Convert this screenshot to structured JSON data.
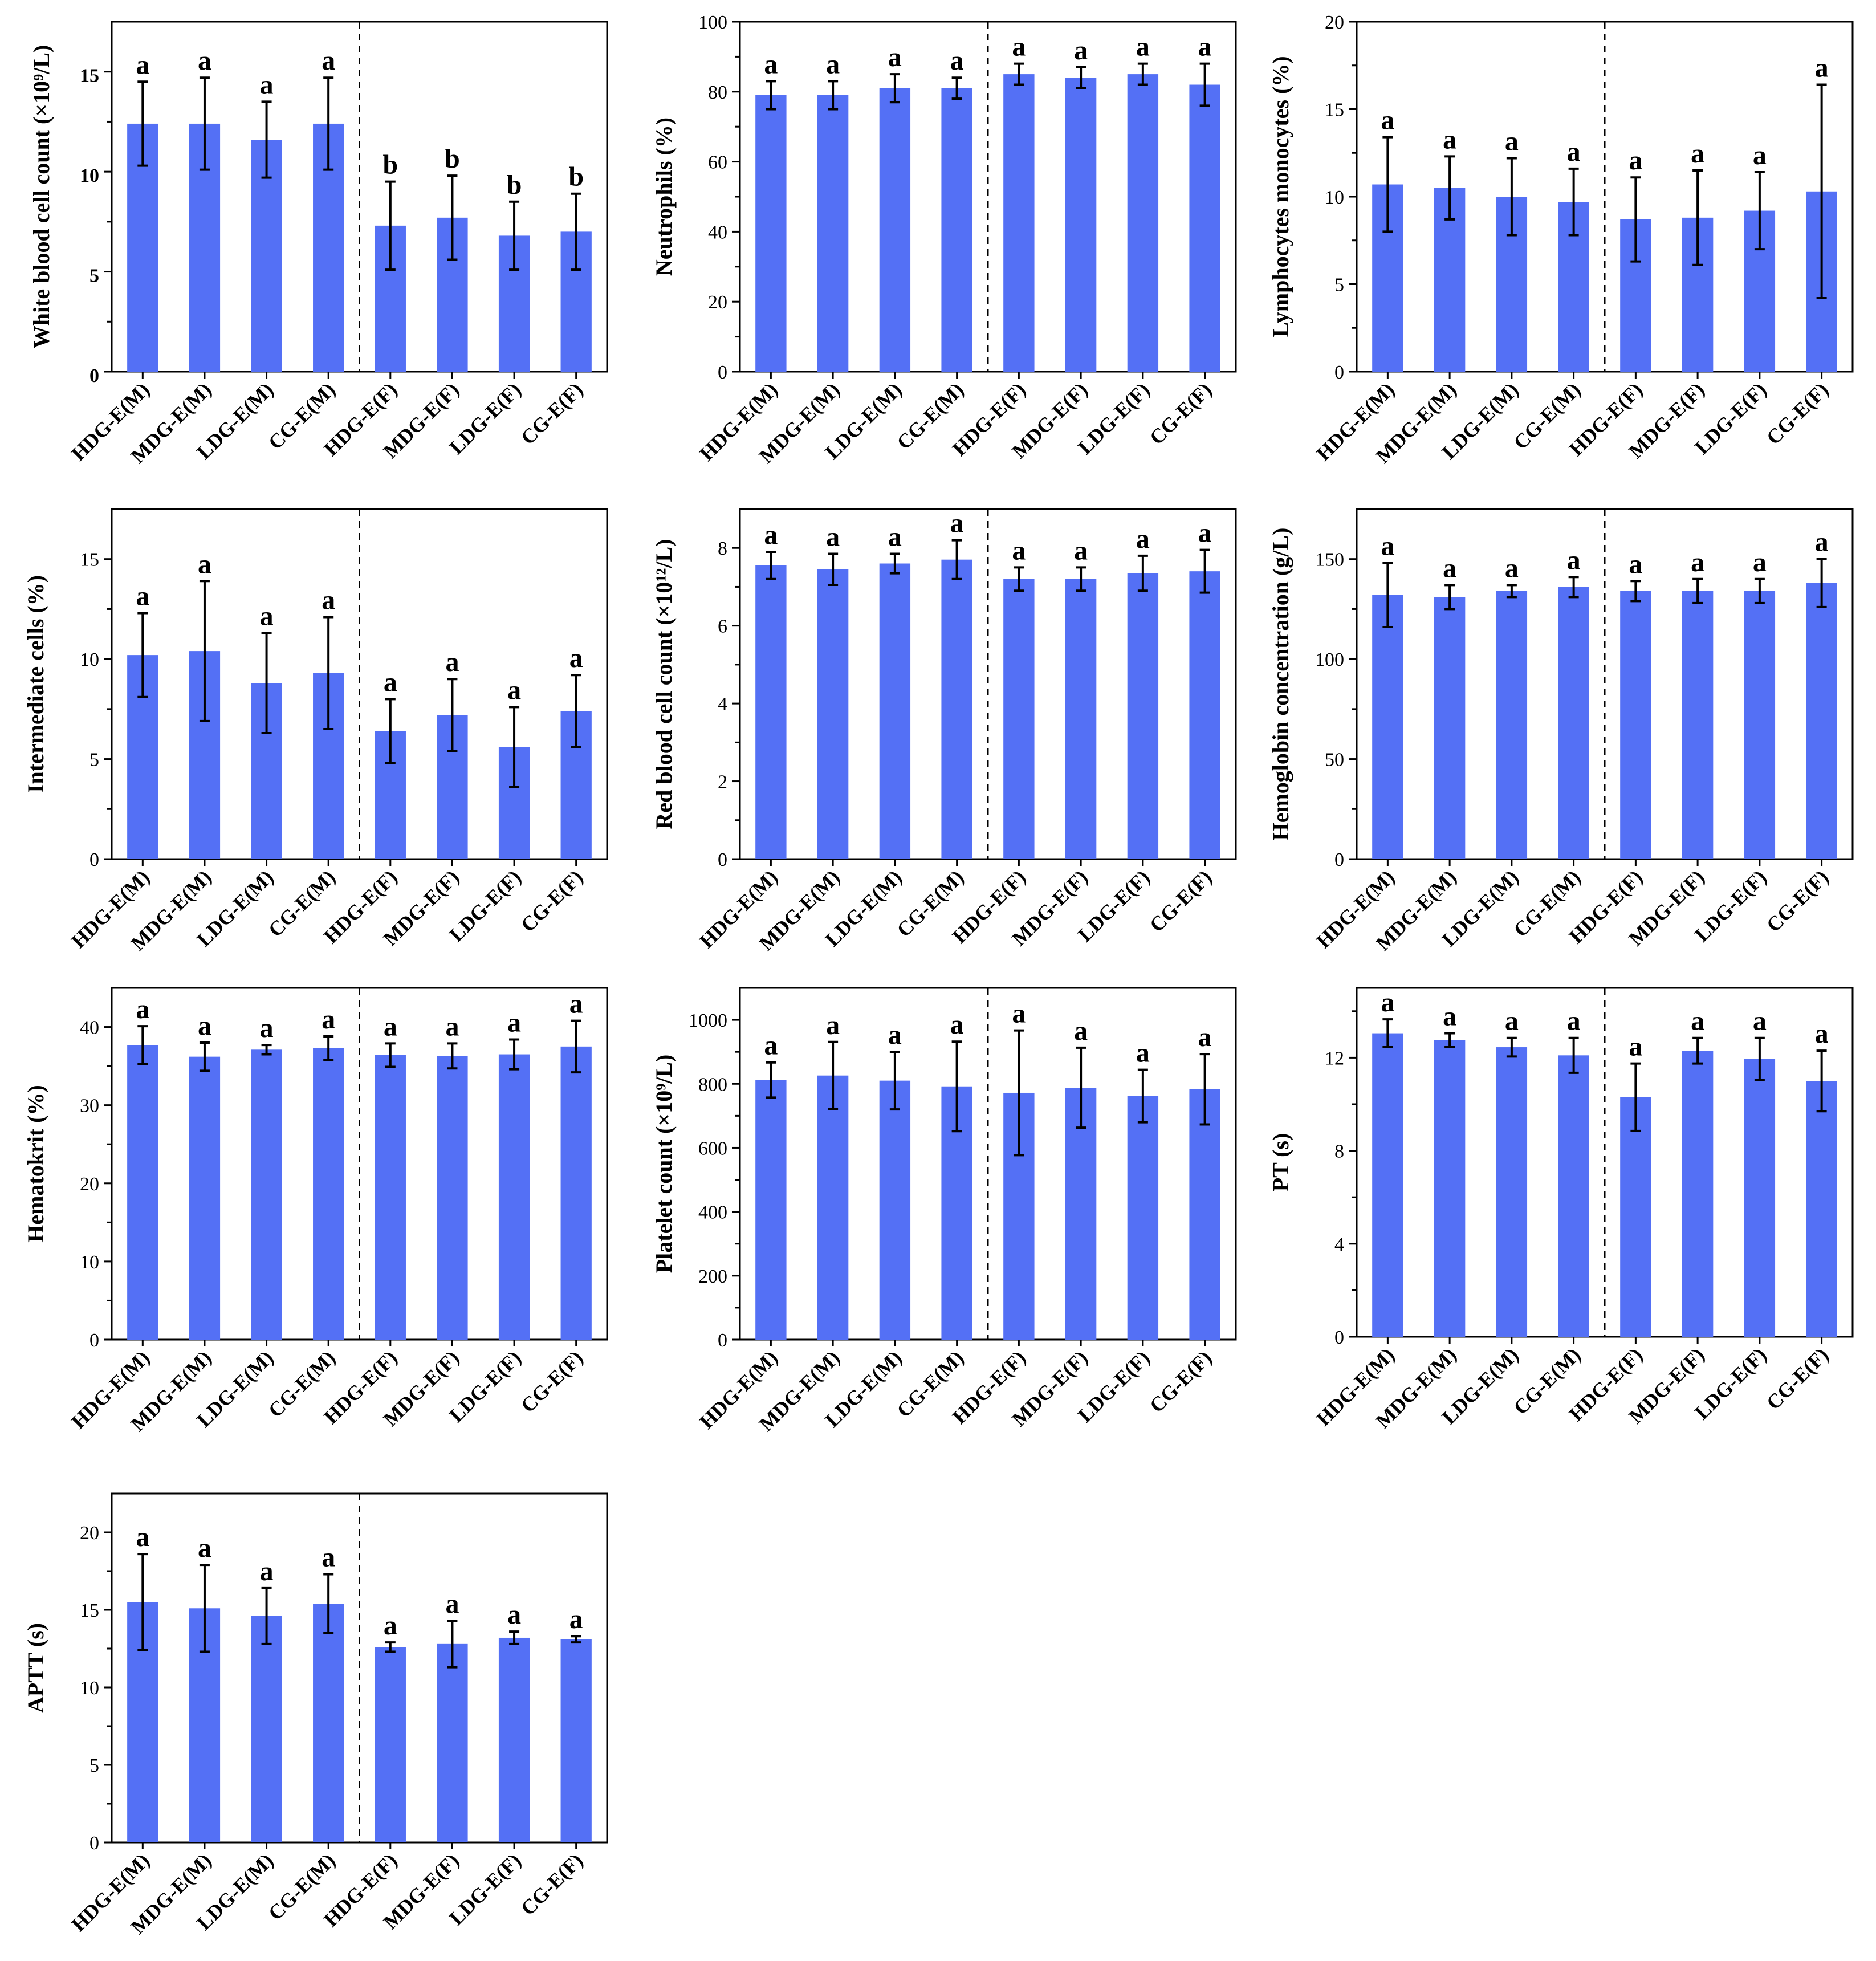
{
  "categories": [
    "HDG-E(M)",
    "MDG-E(M)",
    "LDG-E(M)",
    "CG-E(M)",
    "HDG-E(F)",
    "MDG-E(F)",
    "LDG-E(F)",
    "CG-E(F)"
  ],
  "chart_data": [
    {
      "type": "bar",
      "ylabel": "White blood cell count (×10⁹/L)",
      "ylim": [
        0,
        17.5
      ],
      "yticks": [
        0,
        5,
        10,
        15
      ],
      "font_bold_ticks": true,
      "values": [
        12.4,
        12.4,
        11.6,
        12.4,
        7.3,
        7.7,
        6.8,
        7.0
      ],
      "errors": [
        2.1,
        2.3,
        1.9,
        2.3,
        2.2,
        2.1,
        1.7,
        1.9
      ],
      "letters": [
        "a",
        "a",
        "a",
        "a",
        "b",
        "b",
        "b",
        "b"
      ]
    },
    {
      "type": "bar",
      "ylabel": "Neutrophils (%)",
      "ylim": [
        0,
        100
      ],
      "yticks": [
        0,
        20,
        40,
        60,
        80,
        100
      ],
      "values": [
        79,
        79,
        81,
        81,
        85,
        84,
        85,
        82
      ],
      "errors": [
        4,
        4,
        4,
        3,
        3,
        3,
        3,
        6
      ],
      "letters": [
        "a",
        "a",
        "a",
        "a",
        "a",
        "a",
        "a",
        "a"
      ]
    },
    {
      "type": "bar",
      "ylabel": "Lymphocytes monocytes (%)",
      "ylim": [
        0,
        20
      ],
      "yticks": [
        0,
        5,
        10,
        15,
        20
      ],
      "values": [
        10.7,
        10.5,
        10.0,
        9.7,
        8.7,
        8.8,
        9.2,
        10.3
      ],
      "errors": [
        2.7,
        1.8,
        2.2,
        1.9,
        2.4,
        2.7,
        2.2,
        6.1
      ],
      "letters": [
        "a",
        "a",
        "a",
        "a",
        "a",
        "a",
        "a",
        "a"
      ]
    },
    {
      "type": "bar",
      "ylabel": "Intermediate cells (%)",
      "ylim": [
        0,
        17.5
      ],
      "yticks": [
        0,
        5,
        10,
        15
      ],
      "values": [
        10.2,
        10.4,
        8.8,
        9.3,
        6.4,
        7.2,
        5.6,
        7.4
      ],
      "errors": [
        2.1,
        3.5,
        2.5,
        2.8,
        1.6,
        1.8,
        2.0,
        1.8
      ],
      "letters": [
        "a",
        "a",
        "a",
        "a",
        "a",
        "a",
        "a",
        "a"
      ]
    },
    {
      "type": "bar",
      "ylabel": "Red blood cell count (×10¹²/L)",
      "ylim": [
        0,
        9
      ],
      "yticks": [
        0,
        2,
        4,
        6,
        8
      ],
      "values": [
        7.55,
        7.45,
        7.6,
        7.7,
        7.2,
        7.2,
        7.35,
        7.4
      ],
      "errors": [
        0.35,
        0.4,
        0.25,
        0.5,
        0.3,
        0.3,
        0.45,
        0.55
      ],
      "letters": [
        "a",
        "a",
        "a",
        "a",
        "a",
        "a",
        "a",
        "a"
      ]
    },
    {
      "type": "bar",
      "ylabel": "Hemoglobin concentration (g/L)",
      "ylim": [
        0,
        175
      ],
      "yticks": [
        0,
        50,
        100,
        150
      ],
      "values": [
        132,
        131,
        134,
        136,
        134,
        134,
        134,
        138
      ],
      "errors": [
        16,
        6,
        3,
        5,
        5,
        6,
        6,
        12
      ],
      "letters": [
        "a",
        "a",
        "a",
        "a",
        "a",
        "a",
        "a",
        "a"
      ]
    },
    {
      "type": "bar",
      "ylabel": "Hematokrit (%)",
      "ylim": [
        0,
        45
      ],
      "yticks": [
        0,
        10,
        20,
        30,
        40
      ],
      "values": [
        37.7,
        36.2,
        37.1,
        37.3,
        36.4,
        36.3,
        36.5,
        37.5
      ],
      "errors": [
        2.4,
        1.8,
        0.6,
        1.5,
        1.5,
        1.6,
        1.9,
        3.3
      ],
      "letters": [
        "a",
        "a",
        "a",
        "a",
        "a",
        "a",
        "a",
        "a"
      ]
    },
    {
      "type": "bar",
      "ylabel": "Platelet count (×10⁹/L)",
      "ylim": [
        0,
        1100
      ],
      "yticks": [
        0,
        200,
        400,
        600,
        800,
        1000
      ],
      "values": [
        812,
        826,
        810,
        792,
        772,
        788,
        762,
        783
      ],
      "errors": [
        55,
        105,
        90,
        140,
        195,
        125,
        82,
        110
      ],
      "letters": [
        "a",
        "a",
        "a",
        "a",
        "a",
        "a",
        "a",
        "a"
      ]
    },
    {
      "type": "bar",
      "ylabel": "PT (s)",
      "ylim": [
        0,
        15
      ],
      "yticks": [
        0,
        4,
        8,
        12
      ],
      "values": [
        13.05,
        12.75,
        12.45,
        12.1,
        10.3,
        12.3,
        11.95,
        11.0
      ],
      "errors": [
        0.6,
        0.3,
        0.4,
        0.75,
        1.45,
        0.55,
        0.9,
        1.3
      ],
      "letters": [
        "a",
        "a",
        "a",
        "a",
        "a",
        "a",
        "a",
        "a"
      ]
    },
    {
      "type": "bar",
      "ylabel": "APTT (s)",
      "ylim": [
        0,
        22.5
      ],
      "yticks": [
        0,
        5,
        10,
        15,
        20
      ],
      "values": [
        15.5,
        15.1,
        14.6,
        15.4,
        12.6,
        12.8,
        13.2,
        13.1
      ],
      "errors": [
        3.1,
        2.8,
        1.8,
        1.9,
        0.3,
        1.5,
        0.4,
        0.2
      ],
      "letters": [
        "a",
        "a",
        "a",
        "a",
        "a",
        "a",
        "a",
        "a"
      ]
    }
  ],
  "colors": {
    "bar": "#5470f5",
    "axis": "#000000"
  }
}
